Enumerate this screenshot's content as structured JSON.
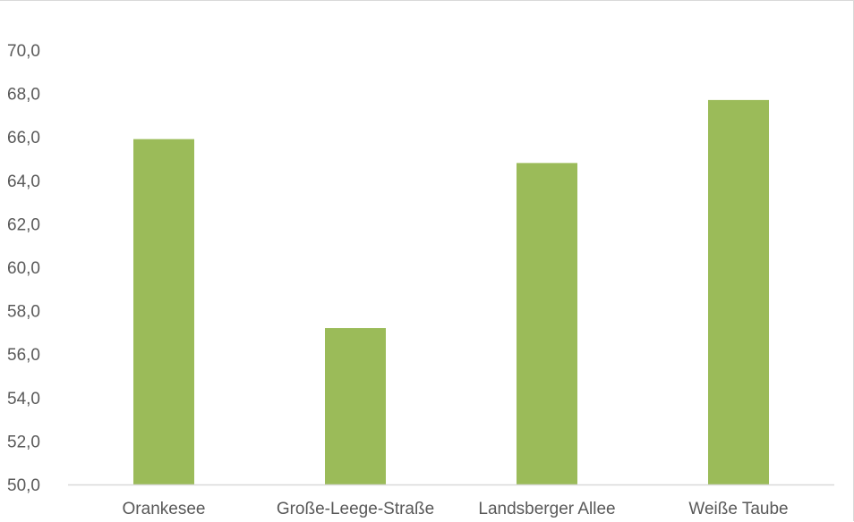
{
  "chart_data": {
    "type": "bar",
    "categories": [
      "Orankesee",
      "Große-Leege-Straße",
      "Landsberger Allee",
      "Weiße Taube"
    ],
    "values": [
      65.9,
      57.2,
      64.8,
      67.7
    ],
    "title": "",
    "xlabel": "",
    "ylabel": "",
    "ylim": [
      50,
      70
    ],
    "yticks": [
      "50,0",
      "52,0",
      "54,0",
      "56,0",
      "58,0",
      "60,0",
      "62,0",
      "64,0",
      "66,0",
      "68,0",
      "70,0"
    ],
    "grid": false,
    "legend": "none",
    "bar_color": "#9bbb59",
    "axis_color": "#d9d9d9",
    "label_color": "#595959"
  }
}
